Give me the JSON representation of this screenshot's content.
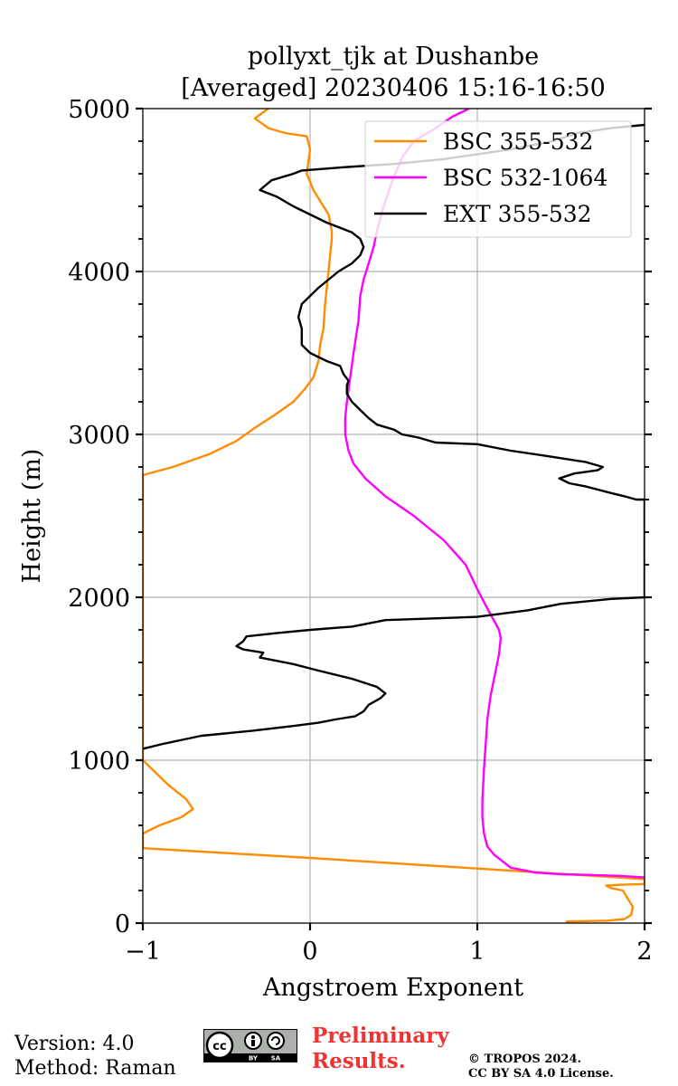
{
  "chart_data": {
    "type": "line",
    "title": [
      "pollyxt_tjk at Dushanbe",
      "[Averaged] 20230406 15:16-16:50"
    ],
    "xlabel": "Angstroem Exponent",
    "ylabel": "Height (m)",
    "xlim": [
      -1,
      2
    ],
    "ylim": [
      0,
      5000
    ],
    "xticks": [
      -1,
      0,
      1,
      2
    ],
    "xtick_labels": [
      "−1",
      "0",
      "1",
      "2"
    ],
    "yticks": [
      0,
      1000,
      2000,
      3000,
      4000,
      5000
    ],
    "ytick_labels": [
      "0",
      "1000",
      "2000",
      "3000",
      "4000",
      "5000"
    ],
    "grid": true,
    "legend_position": "top-right",
    "series": [
      {
        "name": "BSC 355-532",
        "color": "#ff8c00",
        "points": [
          [
            1.53,
            10
          ],
          [
            1.78,
            15
          ],
          [
            1.88,
            25
          ],
          [
            1.92,
            50
          ],
          [
            1.93,
            100
          ],
          [
            1.9,
            150
          ],
          [
            1.87,
            200
          ],
          [
            1.8,
            215
          ],
          [
            1.77,
            230
          ],
          [
            1.85,
            235
          ],
          [
            2.0,
            240
          ],
          [
            2.0,
            270
          ],
          [
            1.0,
            335
          ],
          [
            0.0,
            400
          ],
          [
            -1.0,
            460
          ],
          [
            -1.0,
            550
          ],
          [
            -0.9,
            600
          ],
          [
            -0.77,
            650
          ],
          [
            -0.7,
            700
          ],
          [
            -0.74,
            760
          ],
          [
            -0.85,
            850
          ],
          [
            -0.95,
            950
          ],
          [
            -1.0,
            1000
          ],
          [
            -1.0,
            2750
          ],
          [
            -0.82,
            2800
          ],
          [
            -0.6,
            2880
          ],
          [
            -0.44,
            2960
          ],
          [
            -0.33,
            3040
          ],
          [
            -0.21,
            3120
          ],
          [
            -0.1,
            3200
          ],
          [
            -0.03,
            3280
          ],
          [
            0.02,
            3350
          ],
          [
            0.05,
            3450
          ],
          [
            0.06,
            3550
          ],
          [
            0.08,
            3650
          ],
          [
            0.09,
            3800
          ],
          [
            0.1,
            3900
          ],
          [
            0.11,
            4000
          ],
          [
            0.12,
            4100
          ],
          [
            0.13,
            4200
          ],
          [
            0.13,
            4250
          ],
          [
            0.11,
            4350
          ],
          [
            0.08,
            4400
          ],
          [
            0.02,
            4500
          ],
          [
            -0.02,
            4600
          ],
          [
            0.0,
            4750
          ],
          [
            -0.02,
            4830
          ],
          [
            -0.15,
            4850
          ],
          [
            -0.25,
            4880
          ],
          [
            -0.33,
            4940
          ],
          [
            -0.25,
            5000
          ]
        ]
      },
      {
        "name": "BSC 532-1064",
        "color": "#ff00ff",
        "points": [
          [
            2.0,
            280
          ],
          [
            1.85,
            290
          ],
          [
            1.7,
            295
          ],
          [
            1.5,
            300
          ],
          [
            1.35,
            310
          ],
          [
            1.2,
            340
          ],
          [
            1.1,
            420
          ],
          [
            1.06,
            470
          ],
          [
            1.04,
            550
          ],
          [
            1.03,
            650
          ],
          [
            1.03,
            750
          ],
          [
            1.04,
            950
          ],
          [
            1.05,
            1100
          ],
          [
            1.06,
            1250
          ],
          [
            1.08,
            1400
          ],
          [
            1.11,
            1550
          ],
          [
            1.13,
            1650
          ],
          [
            1.14,
            1750
          ],
          [
            1.13,
            1800
          ],
          [
            1.05,
            1950
          ],
          [
            1.0,
            2050
          ],
          [
            0.93,
            2200
          ],
          [
            0.8,
            2350
          ],
          [
            0.62,
            2500
          ],
          [
            0.45,
            2620
          ],
          [
            0.33,
            2730
          ],
          [
            0.26,
            2820
          ],
          [
            0.23,
            2900
          ],
          [
            0.21,
            3000
          ],
          [
            0.21,
            3100
          ],
          [
            0.22,
            3200
          ],
          [
            0.24,
            3350
          ],
          [
            0.26,
            3500
          ],
          [
            0.29,
            3700
          ],
          [
            0.3,
            3850
          ],
          [
            0.32,
            3950
          ],
          [
            0.35,
            4050
          ],
          [
            0.38,
            4150
          ],
          [
            0.4,
            4250
          ],
          [
            0.44,
            4400
          ],
          [
            0.49,
            4550
          ],
          [
            0.55,
            4700
          ],
          [
            0.62,
            4800
          ],
          [
            0.75,
            4880
          ],
          [
            0.85,
            4950
          ],
          [
            0.95,
            5000
          ]
        ]
      },
      {
        "name": "EXT 355-532",
        "color": "#000000",
        "points": [
          [
            -1.0,
            1070
          ],
          [
            -0.88,
            1100
          ],
          [
            -0.65,
            1150
          ],
          [
            -0.35,
            1180
          ],
          [
            -0.1,
            1210
          ],
          [
            0.05,
            1230
          ],
          [
            0.15,
            1250
          ],
          [
            0.27,
            1270
          ],
          [
            0.32,
            1300
          ],
          [
            0.35,
            1340
          ],
          [
            0.42,
            1380
          ],
          [
            0.45,
            1410
          ],
          [
            0.4,
            1450
          ],
          [
            0.25,
            1500
          ],
          [
            0.05,
            1550
          ],
          [
            -0.1,
            1590
          ],
          [
            -0.3,
            1630
          ],
          [
            -0.28,
            1660
          ],
          [
            -0.4,
            1680
          ],
          [
            -0.44,
            1700
          ],
          [
            -0.4,
            1730
          ],
          [
            -0.38,
            1760
          ],
          [
            -0.2,
            1780
          ],
          [
            0.0,
            1800
          ],
          [
            0.25,
            1820
          ],
          [
            0.35,
            1840
          ],
          [
            0.45,
            1860
          ],
          [
            1.0,
            1880
          ],
          [
            1.3,
            1920
          ],
          [
            1.5,
            1960
          ],
          [
            1.8,
            1990
          ],
          [
            2.0,
            2000
          ],
          [
            2.0,
            2600
          ],
          [
            1.95,
            2600
          ],
          [
            1.88,
            2620
          ],
          [
            1.8,
            2640
          ],
          [
            1.65,
            2680
          ],
          [
            1.55,
            2700
          ],
          [
            1.49,
            2730
          ],
          [
            1.58,
            2760
          ],
          [
            1.72,
            2780
          ],
          [
            1.75,
            2800
          ],
          [
            1.65,
            2830
          ],
          [
            1.4,
            2870
          ],
          [
            1.2,
            2900
          ],
          [
            1.0,
            2940
          ],
          [
            0.75,
            2950
          ],
          [
            0.65,
            2980
          ],
          [
            0.55,
            3000
          ],
          [
            0.5,
            3030
          ],
          [
            0.4,
            3060
          ],
          [
            0.35,
            3100
          ],
          [
            0.3,
            3150
          ],
          [
            0.25,
            3200
          ],
          [
            0.22,
            3250
          ],
          [
            0.22,
            3300
          ],
          [
            0.23,
            3330
          ],
          [
            0.2,
            3370
          ],
          [
            0.18,
            3420
          ],
          [
            0.1,
            3450
          ],
          [
            0.0,
            3500
          ],
          [
            -0.05,
            3550
          ],
          [
            -0.05,
            3650
          ],
          [
            -0.07,
            3720
          ],
          [
            -0.05,
            3800
          ],
          [
            0.05,
            3900
          ],
          [
            0.17,
            4000
          ],
          [
            0.25,
            4050
          ],
          [
            0.3,
            4100
          ],
          [
            0.32,
            4150
          ],
          [
            0.3,
            4200
          ],
          [
            0.25,
            4240
          ],
          [
            0.1,
            4300
          ],
          [
            0.0,
            4350
          ],
          [
            -0.1,
            4400
          ],
          [
            -0.2,
            4460
          ],
          [
            -0.3,
            4500
          ],
          [
            -0.23,
            4560
          ],
          [
            -0.1,
            4600
          ],
          [
            -0.05,
            4620
          ],
          [
            0.2,
            4640
          ],
          [
            0.5,
            4660
          ],
          [
            0.8,
            4690
          ],
          [
            1.0,
            4720
          ],
          [
            1.2,
            4750
          ],
          [
            1.45,
            4800
          ],
          [
            1.6,
            4850
          ],
          [
            1.8,
            4880
          ],
          [
            2.0,
            4900
          ]
        ]
      }
    ]
  },
  "footer": {
    "version_text": "Version: 4.0",
    "method_text": "Method: Raman",
    "preliminary_line1": "Preliminary",
    "preliminary_line2": "Results.",
    "copyright_line1": "© TROPOS 2024.",
    "copyright_line2": "CC BY SA 4.0 License.",
    "cc_badge_text": [
      "cc",
      "BY",
      "SA"
    ]
  }
}
